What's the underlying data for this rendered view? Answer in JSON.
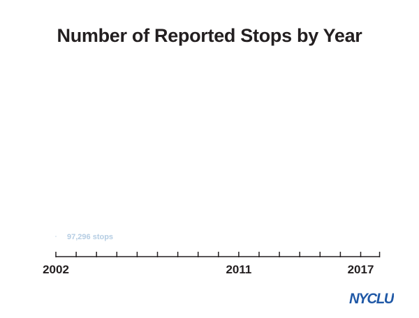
{
  "chart_data": {
    "type": "bar",
    "title": "Number of Reported Stops by Year",
    "x": [
      2002
    ],
    "values": [
      97296
    ],
    "data_labels": [
      "97,296 stops"
    ],
    "x_range": [
      2002,
      2018
    ],
    "tick_labels": [
      {
        "year": 2002,
        "label": "2002"
      },
      {
        "year": 2011,
        "label": "2011"
      },
      {
        "year": 2017,
        "label": "2017"
      }
    ],
    "xlabel": "",
    "ylabel": "",
    "grid": false
  },
  "colors": {
    "title": "#231f20",
    "axis": "#231f20",
    "label": "#b5cde3",
    "bar": "#c7d8ea",
    "logo": "#1f58a6"
  },
  "brand": {
    "logo_text": "NYCLU"
  }
}
